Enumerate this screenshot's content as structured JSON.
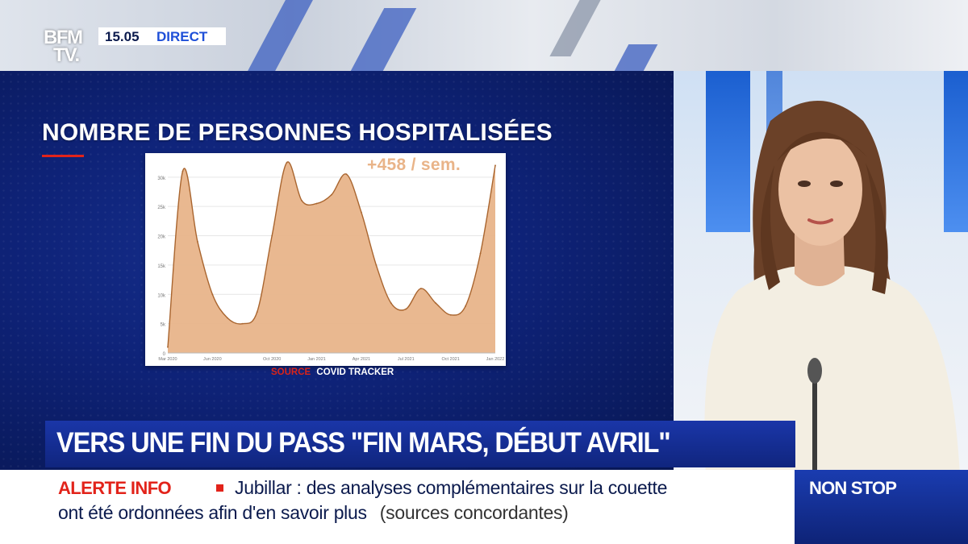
{
  "broadcast": {
    "logo_top": "BFM",
    "logo_bottom": "TV.",
    "clock": "15.05",
    "live_label": "DIRECT"
  },
  "graphic": {
    "title": "NOMBRE DE PERSONNES HOSPITALISÉES",
    "rate_label": "+458 / sem.",
    "source_word": "SOURCE",
    "source_name": "COVID TRACKER"
  },
  "headline": "VERS UNE FIN DU PASS \"FIN MARS, DÉBUT AVRIL\"",
  "ticker": {
    "alert_label": "ALERTE INFO",
    "line1": "Jubillar : des analyses complémentaires sur la couette",
    "line2": "ont été ordonnées afin d'en savoir plus",
    "source": "(sources concordantes)"
  },
  "nonstop_label": "NON STOP",
  "colors": {
    "accent_red": "#e2231a",
    "panel_blue": "#0e2277",
    "chart_fill": "#e8b48a",
    "chart_line": "#a9652f"
  },
  "chart_data": {
    "type": "area",
    "title": "",
    "xlabel": "",
    "ylabel": "",
    "x": [
      "Mar 2020",
      "Apr 2020",
      "May 2020",
      "Jun 2020",
      "Jul 2020",
      "Aug 2020",
      "Sep 2020",
      "Oct 2020",
      "Nov 2020",
      "Dec 2020",
      "Jan 2021",
      "Feb 2021",
      "Mar 2021",
      "Apr 2021",
      "May 2021",
      "Jun 2021",
      "Jul 2021",
      "Aug 2021",
      "Sep 2021",
      "Oct 2021",
      "Nov 2021",
      "Dec 2021",
      "Jan 2022"
    ],
    "values": [
      1000,
      31000,
      19000,
      10000,
      6000,
      5000,
      7000,
      20000,
      32500,
      26000,
      25500,
      27000,
      30500,
      24000,
      15000,
      8500,
      7500,
      11000,
      8500,
      6500,
      8000,
      17000,
      32000
    ],
    "x_tick_labels": [
      "Mar 2020",
      "Jun 2020",
      "Oct 2020",
      "Jan 2021",
      "Apr 2021",
      "Jul 2021",
      "Oct 2021",
      "Jan 2022"
    ],
    "y_tick_labels": [
      "0",
      "5k",
      "10k",
      "15k",
      "20k",
      "25k",
      "30k"
    ],
    "ylim": [
      0,
      33000
    ],
    "grid": true,
    "series": [
      {
        "values_ref": "values"
      }
    ]
  }
}
